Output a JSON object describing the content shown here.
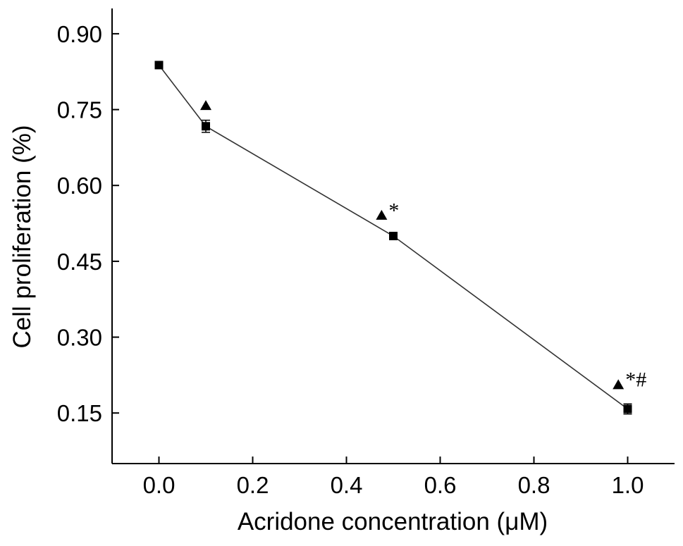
{
  "chart_data": {
    "type": "scatter",
    "title": "",
    "xlabel": "Acridone concentration (μM)",
    "ylabel": "Cell proliferation (%)",
    "xlim": [
      -0.1,
      1.1
    ],
    "ylim": [
      0.05,
      0.95
    ],
    "xticks": [
      "0.0",
      "0.2",
      "0.4",
      "0.6",
      "0.8",
      "1.0"
    ],
    "yticks": [
      "0.15",
      "0.30",
      "0.45",
      "0.60",
      "0.75",
      "0.90"
    ],
    "grid": false,
    "series": [
      {
        "marker": "square",
        "connected": true,
        "x": [
          0.0,
          0.1,
          0.5,
          1.0
        ],
        "y": [
          0.838,
          0.717,
          0.5,
          0.158
        ],
        "error": [
          0.004,
          0.012,
          0.004,
          0.01
        ]
      },
      {
        "marker": "triangle",
        "connected": false,
        "x": [
          0.1,
          0.475,
          0.98
        ],
        "y": [
          0.757,
          0.54,
          0.205
        ]
      }
    ],
    "annotations": [
      {
        "text": "*",
        "x": 0.475,
        "y": 0.54
      },
      {
        "text": "*#",
        "x": 0.98,
        "y": 0.205
      }
    ]
  }
}
